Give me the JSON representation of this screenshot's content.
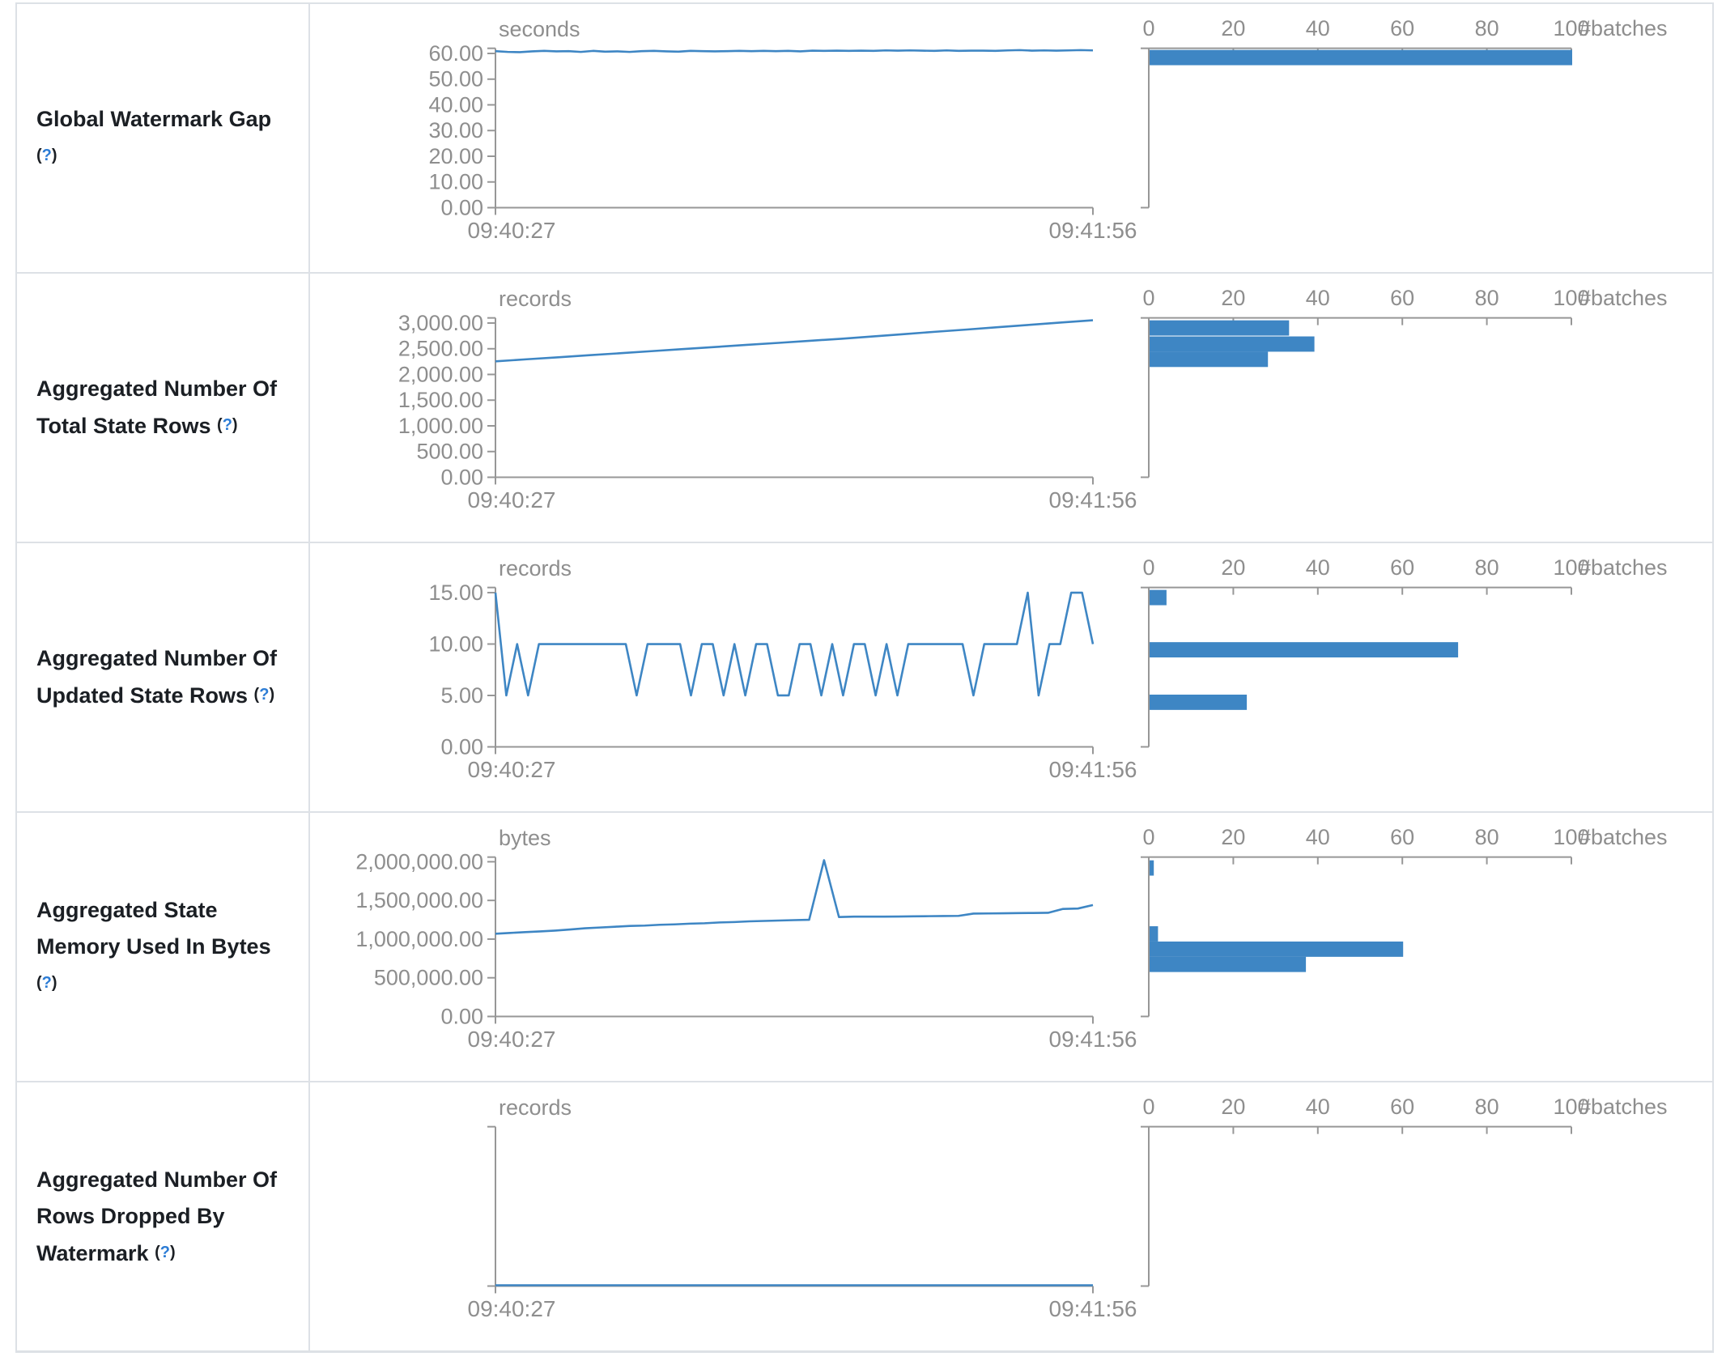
{
  "chart_data": {
    "accent_color": "#3e86c4",
    "axis_color": "#979797",
    "border_color": "#dde1e6",
    "rows": [
      {
        "label": "Global Watermark Gap",
        "help_open": "(",
        "help_q": "?",
        "help_close": ")",
        "timeline": {
          "type": "line",
          "unit": "seconds",
          "x_start": "09:40:27",
          "x_end": "09:41:56",
          "domain_max": 62,
          "y_ticks": [
            {
              "v": 0,
              "label": "0.00"
            },
            {
              "v": 10,
              "label": "10.00"
            },
            {
              "v": 20,
              "label": "20.00"
            },
            {
              "v": 30,
              "label": "30.00"
            },
            {
              "v": 40,
              "label": "40.00"
            },
            {
              "v": 50,
              "label": "50.00"
            },
            {
              "v": 60,
              "label": "60.00"
            }
          ],
          "values": [
            60.9,
            60.6,
            60.5,
            60.8,
            61,
            60.8,
            60.9,
            60.6,
            61,
            60.7,
            60.8,
            60.6,
            60.9,
            61,
            60.8,
            60.7,
            61,
            60.9,
            60.8,
            60.9,
            61,
            60.9,
            61,
            60.9,
            61,
            60.8,
            61.1,
            61,
            61.1,
            61,
            61.1,
            61,
            61.2,
            61.1,
            61.2,
            61.1,
            61,
            61.2,
            61,
            61.1,
            61.1,
            61,
            61.2,
            61.3,
            61.1,
            61.2,
            61.1,
            61.2,
            61.3,
            61.2
          ]
        },
        "histogram": {
          "type": "bar",
          "unit": "#batches",
          "x_ticks": [
            {
              "v": 0,
              "label": "0"
            },
            {
              "v": 20,
              "label": "20"
            },
            {
              "v": 40,
              "label": "40"
            },
            {
              "v": 60,
              "label": "60"
            },
            {
              "v": 80,
              "label": "80"
            },
            {
              "v": 100,
              "label": "100"
            }
          ],
          "bars": [
            {
              "count": 100,
              "frac": 0.005
            }
          ]
        }
      },
      {
        "label": "Aggregated Number Of Total State Rows",
        "help_open": "(",
        "help_q": "?",
        "help_close": ")",
        "timeline": {
          "type": "line",
          "unit": "records",
          "x_start": "09:40:27",
          "x_end": "09:41:56",
          "domain_max": 3100,
          "y_ticks": [
            {
              "v": 0,
              "label": "0.00"
            },
            {
              "v": 500,
              "label": "500.00"
            },
            {
              "v": 1000,
              "label": "1,000.00"
            },
            {
              "v": 1500,
              "label": "1,500.00"
            },
            {
              "v": 2000,
              "label": "2,000.00"
            },
            {
              "v": 2500,
              "label": "2,500.00"
            },
            {
              "v": 3000,
              "label": "3,000.00"
            }
          ],
          "values": [
            2255,
            2295,
            2335,
            2375,
            2415,
            2455,
            2495,
            2535,
            2575,
            2615,
            2655,
            2695,
            2740,
            2785,
            2830,
            2875,
            2920,
            2965,
            3010,
            3055
          ]
        },
        "histogram": {
          "type": "bar",
          "unit": "#batches",
          "x_ticks": [
            {
              "v": 0,
              "label": "0"
            },
            {
              "v": 20,
              "label": "20"
            },
            {
              "v": 40,
              "label": "40"
            },
            {
              "v": 60,
              "label": "60"
            },
            {
              "v": 80,
              "label": "80"
            },
            {
              "v": 100,
              "label": "100"
            }
          ],
          "bars": [
            {
              "count": 33,
              "frac": 0.01
            },
            {
              "count": 39,
              "frac": 0.111
            },
            {
              "count": 28,
              "frac": 0.207
            }
          ]
        }
      },
      {
        "label": "Aggregated Number Of Updated State Rows",
        "help_open": "(",
        "help_q": "?",
        "help_close": ")",
        "timeline": {
          "type": "line",
          "unit": "records",
          "x_start": "09:40:27",
          "x_end": "09:41:56",
          "domain_max": 15.5,
          "y_ticks": [
            {
              "v": 0,
              "label": "0.00"
            },
            {
              "v": 5,
              "label": "5.00"
            },
            {
              "v": 10,
              "label": "10.00"
            },
            {
              "v": 15,
              "label": "15.00"
            }
          ],
          "values": [
            15,
            5,
            10,
            5,
            10,
            10,
            10,
            10,
            10,
            10,
            10,
            10,
            10,
            5,
            10,
            10,
            10,
            10,
            5,
            10,
            10,
            5,
            10,
            5,
            10,
            10,
            5,
            5,
            10,
            10,
            5,
            10,
            5,
            10,
            10,
            5,
            10,
            5,
            10,
            10,
            10,
            10,
            10,
            10,
            5,
            10,
            10,
            10,
            10,
            15,
            5,
            10,
            10,
            15,
            15,
            10
          ]
        },
        "histogram": {
          "type": "bar",
          "unit": "#batches",
          "x_ticks": [
            {
              "v": 0,
              "label": "0"
            },
            {
              "v": 20,
              "label": "20"
            },
            {
              "v": 40,
              "label": "40"
            },
            {
              "v": 60,
              "label": "60"
            },
            {
              "v": 80,
              "label": "80"
            },
            {
              "v": 100,
              "label": "100"
            }
          ],
          "bars": [
            {
              "count": 4,
              "frac": 0.01
            },
            {
              "count": 73,
              "frac": 0.338
            },
            {
              "count": 23,
              "frac": 0.667
            }
          ]
        }
      },
      {
        "label": "Aggregated State Memory Used In Bytes",
        "help_open": "(",
        "help_q": "?",
        "help_close": ")",
        "timeline": {
          "type": "line",
          "unit": "bytes",
          "x_start": "09:40:27",
          "x_end": "09:41:56",
          "domain_max": 2060000,
          "y_ticks": [
            {
              "v": 0,
              "label": "0.00"
            },
            {
              "v": 500000,
              "label": "500,000.00"
            },
            {
              "v": 1000000,
              "label": "1,000,000.00"
            },
            {
              "v": 1500000,
              "label": "1,500,000.00"
            },
            {
              "v": 2000000,
              "label": "2,000,000.00"
            }
          ],
          "values": [
            1070000,
            1080000,
            1090000,
            1100000,
            1110000,
            1125000,
            1140000,
            1150000,
            1160000,
            1170000,
            1175000,
            1185000,
            1190000,
            1200000,
            1205000,
            1215000,
            1220000,
            1230000,
            1235000,
            1240000,
            1245000,
            1250000,
            2020000,
            1285000,
            1290000,
            1290000,
            1290000,
            1292000,
            1294000,
            1296000,
            1298000,
            1300000,
            1330000,
            1332000,
            1334000,
            1336000,
            1338000,
            1340000,
            1390000,
            1395000,
            1440000
          ]
        },
        "histogram": {
          "type": "bar",
          "unit": "#batches",
          "x_ticks": [
            {
              "v": 0,
              "label": "0"
            },
            {
              "v": 20,
              "label": "20"
            },
            {
              "v": 40,
              "label": "40"
            },
            {
              "v": 60,
              "label": "60"
            },
            {
              "v": 80,
              "label": "80"
            },
            {
              "v": 100,
              "label": "100"
            }
          ],
          "bars": [
            {
              "count": 1,
              "frac": 0.015
            },
            {
              "count": 2,
              "frac": 0.429
            },
            {
              "count": 60,
              "frac": 0.525
            },
            {
              "count": 37,
              "frac": 0.62
            }
          ]
        }
      },
      {
        "label": "Aggregated Number Of Rows Dropped By Watermark",
        "help_open": "(",
        "help_q": "?",
        "help_close": ")",
        "timeline": {
          "type": "line",
          "unit": "records",
          "x_start": "09:40:27",
          "x_end": "09:41:56",
          "domain_max": 1,
          "y_ticks": [],
          "values": [
            0,
            0,
            0,
            0,
            0,
            0,
            0,
            0,
            0,
            0,
            0,
            0,
            0,
            0,
            0,
            0,
            0,
            0,
            0,
            0
          ]
        },
        "histogram": {
          "type": "bar",
          "unit": "#batches",
          "x_ticks": [
            {
              "v": 0,
              "label": "0"
            },
            {
              "v": 20,
              "label": "20"
            },
            {
              "v": 40,
              "label": "40"
            },
            {
              "v": 60,
              "label": "60"
            },
            {
              "v": 80,
              "label": "80"
            },
            {
              "v": 100,
              "label": "100"
            }
          ],
          "bars": []
        }
      }
    ]
  }
}
